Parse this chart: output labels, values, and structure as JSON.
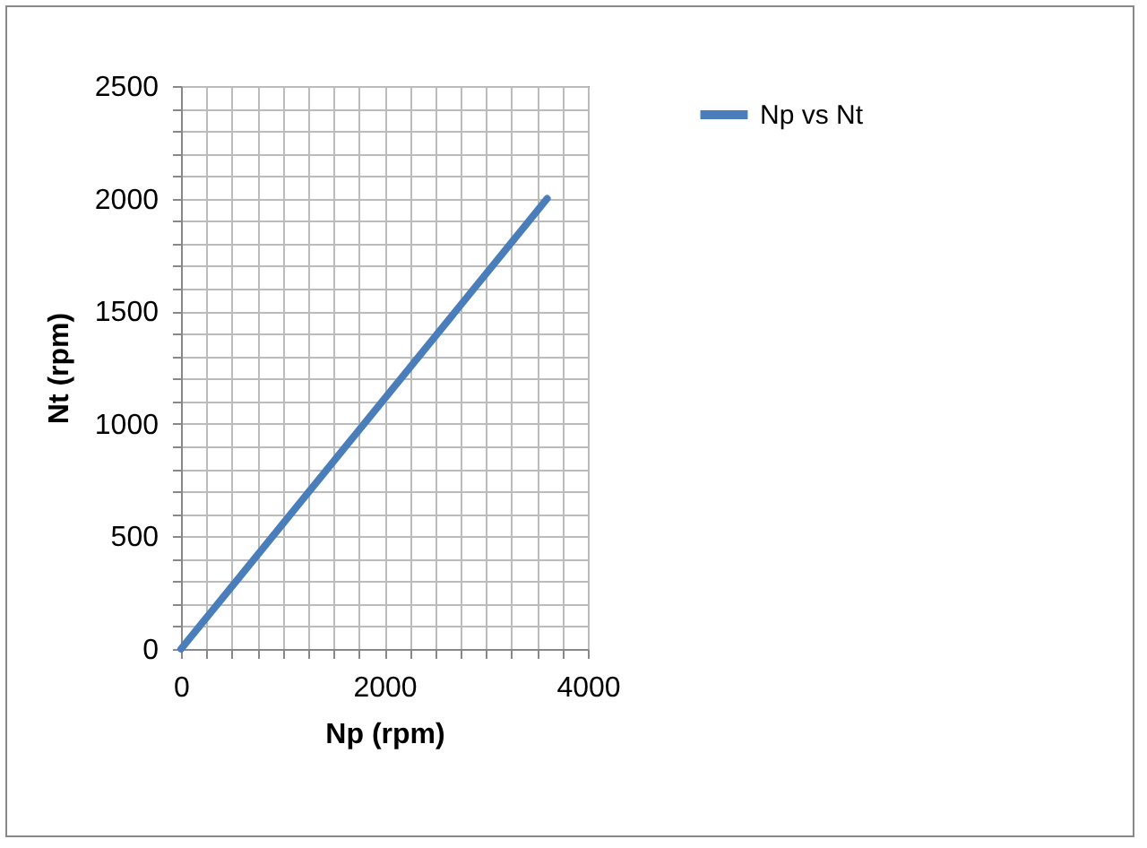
{
  "chart_data": {
    "type": "line",
    "xlabel": "Np (rpm)",
    "ylabel": "Nt (rpm)",
    "x": [
      0,
      3600
    ],
    "series": [
      {
        "name": "Np vs Nt",
        "color": "#4a7ebb",
        "values": [
          0,
          2000
        ]
      }
    ],
    "xlim": [
      0,
      4000
    ],
    "ylim": [
      0,
      2500
    ],
    "xticks": [
      0,
      {
        "value": 250,
        "label": null
      },
      {
        "value": 500,
        "label": null
      },
      {
        "value": 750,
        "label": null
      },
      {
        "value": 1000,
        "label": null
      },
      {
        "value": 1250,
        "label": null
      },
      {
        "value": 1500,
        "label": null
      },
      {
        "value": 1750,
        "label": null
      },
      2000,
      {
        "value": 2250,
        "label": null
      },
      {
        "value": 2500,
        "label": null
      },
      {
        "value": 2750,
        "label": null
      },
      {
        "value": 3000,
        "label": null
      },
      {
        "value": 3250,
        "label": null
      },
      {
        "value": 3500,
        "label": null
      },
      {
        "value": 3750,
        "label": null
      },
      4000
    ],
    "yticks": [
      0,
      {
        "value": 100,
        "label": null
      },
      {
        "value": 200,
        "label": null
      },
      {
        "value": 300,
        "label": null
      },
      {
        "value": 400,
        "label": null
      },
      500,
      {
        "value": 600,
        "label": null
      },
      {
        "value": 700,
        "label": null
      },
      {
        "value": 800,
        "label": null
      },
      {
        "value": 900,
        "label": null
      },
      1000,
      {
        "value": 1100,
        "label": null
      },
      {
        "value": 1200,
        "label": null
      },
      {
        "value": 1300,
        "label": null
      },
      {
        "value": 1400,
        "label": null
      },
      1500,
      {
        "value": 1600,
        "label": null
      },
      {
        "value": 1700,
        "label": null
      },
      {
        "value": 1800,
        "label": null
      },
      {
        "value": 1900,
        "label": null
      },
      2000,
      {
        "value": 2100,
        "label": null
      },
      {
        "value": 2200,
        "label": null
      },
      {
        "value": 2300,
        "label": null
      },
      {
        "value": 2400,
        "label": null
      },
      2500
    ],
    "grid": true,
    "legend": "right",
    "marker": "none",
    "line_style": "solid"
  }
}
